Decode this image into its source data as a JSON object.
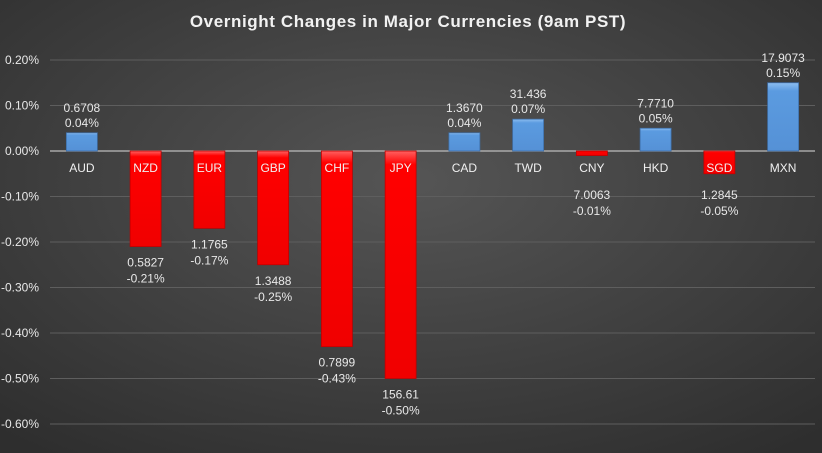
{
  "chart_data": {
    "type": "bar",
    "title": "Overnight Changes in Major Currencies (9am PST)",
    "xlabel": "",
    "ylabel": "",
    "ylim": [
      -0.6,
      0.2
    ],
    "yticks": [
      0.2,
      0.1,
      0.0,
      -0.1,
      -0.2,
      -0.3,
      -0.4,
      -0.5,
      -0.6
    ],
    "ytick_labels": [
      "0.20%",
      "0.10%",
      "0.00%",
      "-0.10%",
      "-0.20%",
      "-0.30%",
      "-0.40%",
      "-0.50%",
      "-0.60%"
    ],
    "grid": true,
    "categories": [
      "AUD",
      "NZD",
      "EUR",
      "GBP",
      "CHF",
      "JPY",
      "CAD",
      "TWD",
      "CNY",
      "HKD",
      "SGD",
      "MXN"
    ],
    "values": [
      0.04,
      -0.21,
      -0.17,
      -0.25,
      -0.43,
      -0.5,
      0.04,
      0.07,
      -0.01,
      0.05,
      -0.05,
      0.15
    ],
    "value_labels": [
      "0.04%",
      "-0.21%",
      "-0.17%",
      "-0.25%",
      "-0.43%",
      "-0.50%",
      "0.04%",
      "0.07%",
      "-0.01%",
      "0.05%",
      "-0.05%",
      "0.15%"
    ],
    "rates": [
      "0.6708",
      "0.5827",
      "1.1765",
      "1.3488",
      "0.7899",
      "156.61",
      "1.3670",
      "31.436",
      "7.0063",
      "7.7710",
      "1.2845",
      "17.9073"
    ],
    "colors": {
      "positive": "#5b9be0",
      "negative": "#ff0000",
      "background": "#3f3f3f",
      "text": "#e8e8e8",
      "grid": "#5e5e5e"
    }
  }
}
